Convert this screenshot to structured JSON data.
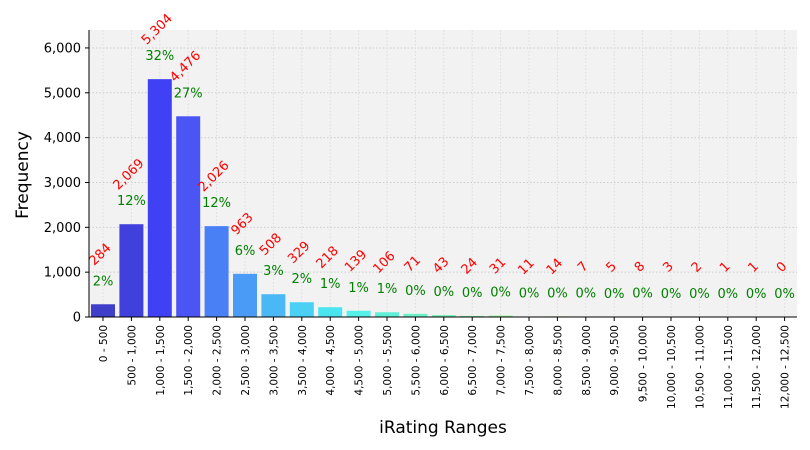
{
  "chart_data": {
    "type": "bar",
    "title": "",
    "xlabel": "iRating Ranges",
    "ylabel": "Frequency",
    "ylim": [
      0,
      6400
    ],
    "yticks": [
      0,
      1000,
      2000,
      3000,
      4000,
      5000,
      6000
    ],
    "ytick_labels": [
      "0",
      "1,000",
      "2,000",
      "3,000",
      "4,000",
      "5,000",
      "6,000"
    ],
    "grid": true,
    "categories": [
      "0 - 500",
      "500 - 1,000",
      "1,000 - 1,500",
      "1,500 - 2,000",
      "2,000 - 2,500",
      "2,500 - 3,000",
      "3,000 - 3,500",
      "3,500 - 4,000",
      "4,000 - 4,500",
      "4,500 - 5,000",
      "5,000 - 5,500",
      "5,500 - 6,000",
      "6,000 - 6,500",
      "6,500 - 7,000",
      "7,000 - 7,500",
      "7,500 - 8,000",
      "8,000 - 8,500",
      "8,500 - 9,000",
      "9,000 - 9,500",
      "9,500 - 10,000",
      "10,000 - 10,500",
      "10,500 - 11,000",
      "11,000 - 11,500",
      "11,500 - 12,000",
      "12,000 - 12,500"
    ],
    "values": [
      284,
      2069,
      5304,
      4476,
      2026,
      963,
      508,
      329,
      218,
      139,
      106,
      71,
      43,
      24,
      31,
      11,
      14,
      7,
      5,
      8,
      3,
      2,
      1,
      1,
      0
    ],
    "count_labels": [
      "284",
      "2,069",
      "5,304",
      "4,476",
      "2,026",
      "963",
      "508",
      "329",
      "218",
      "139",
      "106",
      "71",
      "43",
      "24",
      "31",
      "11",
      "14",
      "7",
      "5",
      "8",
      "3",
      "2",
      "1",
      "1",
      "0"
    ],
    "percent_labels": [
      "2%",
      "12%",
      "32%",
      "27%",
      "12%",
      "6%",
      "3%",
      "2%",
      "1%",
      "1%",
      "1%",
      "0%",
      "0%",
      "0%",
      "0%",
      "0%",
      "0%",
      "0%",
      "0%",
      "0%",
      "0%",
      "0%",
      "0%",
      "0%",
      "0%"
    ],
    "colors": [
      "#3f3fc9",
      "#4040dd",
      "#4040f5",
      "#4a55f4",
      "#4a80f5",
      "#4a9bf5",
      "#4ab8f5",
      "#4ad0f5",
      "#4ae5f0",
      "#55f0e8",
      "#60f0d8",
      "#6cf0c8",
      "#78f0b8",
      "#84f0a8",
      "#90f098",
      "#9cf088",
      "#a8f07a",
      "#b4f06c",
      "#c0f060",
      "#ccf055",
      "#d8f04c",
      "#e4f044",
      "#eef03c",
      "#f5ec36",
      "#f8e030"
    ],
    "count_label_color": "#ff0000",
    "percent_label_color": "#008000",
    "plot_background": "#f2f2f2"
  }
}
